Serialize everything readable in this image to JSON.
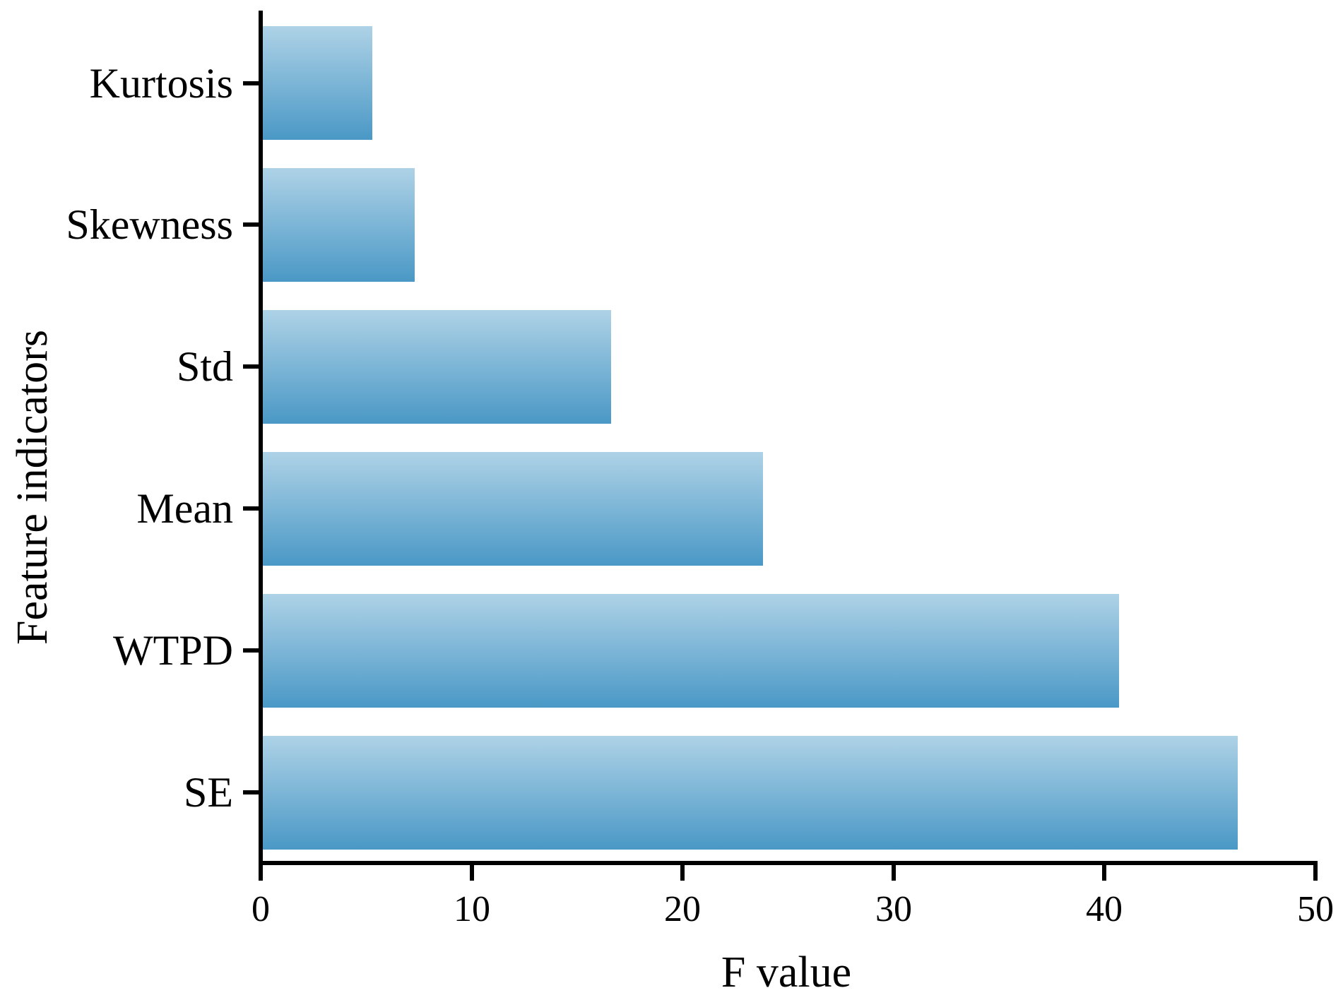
{
  "chart_data": {
    "type": "bar",
    "orientation": "horizontal",
    "order": "top-to-bottom",
    "categories": [
      "Kurtosis",
      "Skewness",
      "Std",
      "Mean",
      "WTPD",
      "SE"
    ],
    "values": [
      5.3,
      7.3,
      16.6,
      23.8,
      40.7,
      46.3
    ],
    "title": "",
    "xlabel": "F value",
    "ylabel": "Feature indicators",
    "xlim": [
      0,
      50
    ],
    "xticks": [
      0,
      10,
      20,
      30,
      40,
      50
    ],
    "xtick_labels": [
      "0",
      "10",
      "20",
      "30",
      "40",
      "50"
    ],
    "grid": false,
    "legend": "none",
    "colors": {
      "bar_gradient_top": "#AED2E6",
      "bar_gradient_bottom": "#4A98C6",
      "axis": "#000000",
      "background": "#FFFFFF"
    }
  }
}
